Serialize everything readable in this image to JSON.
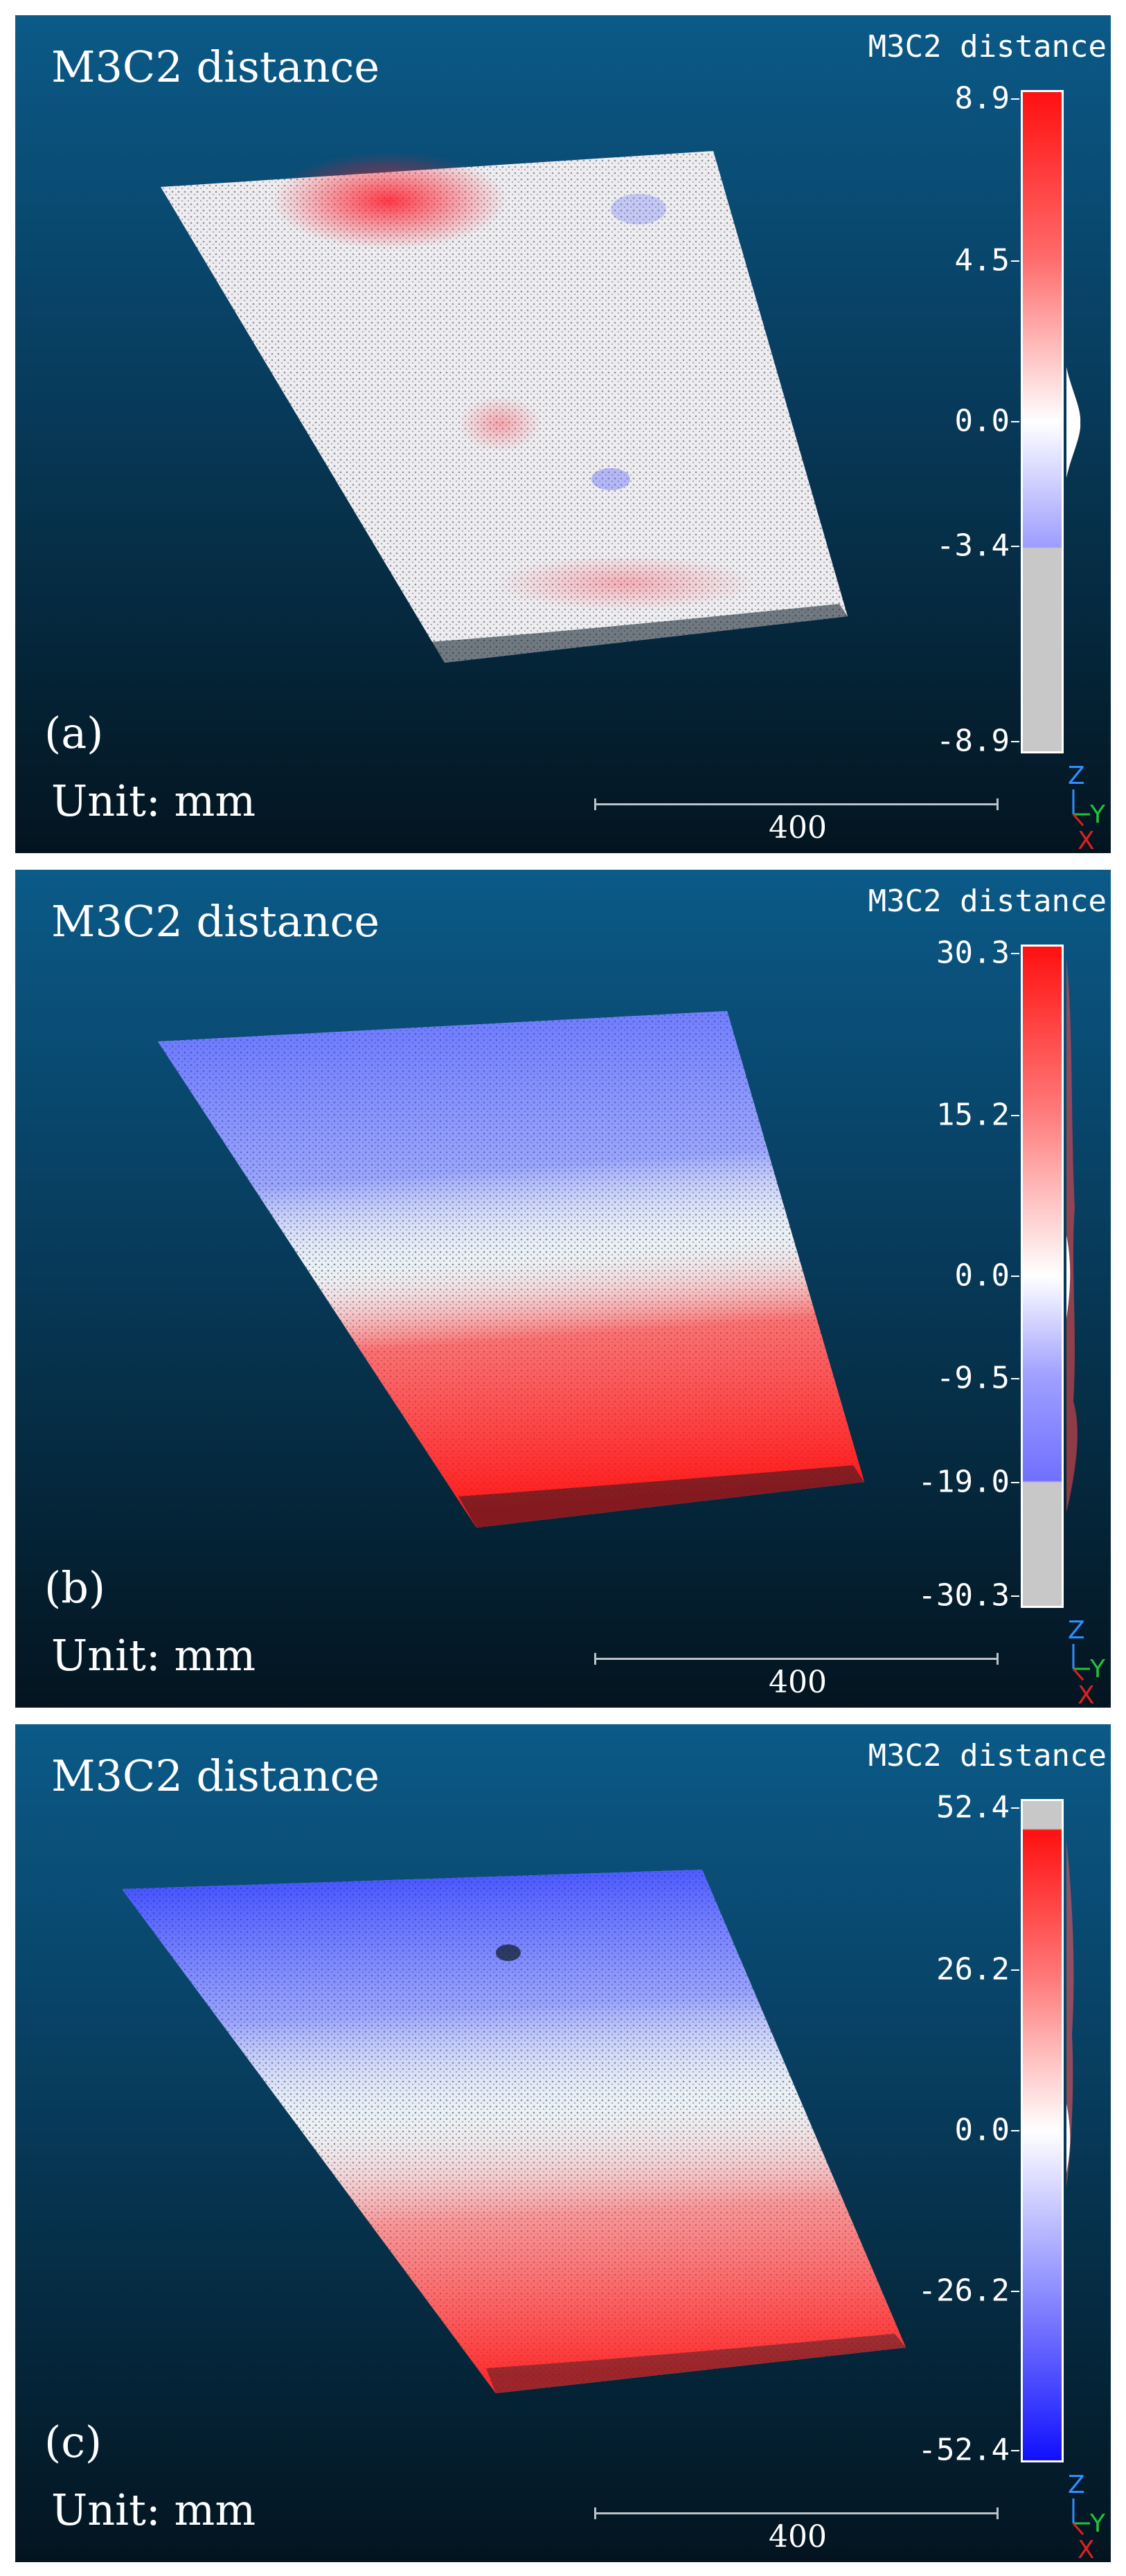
{
  "panels": [
    {
      "title": "M3C2 distance",
      "label": "(a)",
      "unit": "Unit: mm",
      "scalebar": "400",
      "colorbar_title": "M3C2 distance",
      "ticks": [
        "8.9",
        "4.5",
        "0.0",
        "-3.4",
        "-8.9"
      ],
      "tick_values": [
        8.9,
        4.5,
        0.0,
        -3.4,
        -8.9
      ],
      "range": [
        -8.9,
        8.9
      ],
      "saturation_low": -3.4,
      "axis": {
        "z": "Z",
        "y": "Y",
        "x": "X"
      }
    },
    {
      "title": "M3C2 distance",
      "label": "(b)",
      "unit": "Unit: mm",
      "scalebar": "400",
      "colorbar_title": "M3C2 distance",
      "ticks": [
        "30.3",
        "15.2",
        "0.0",
        "-9.5",
        "-19.0",
        "-30.3"
      ],
      "tick_values": [
        30.3,
        15.2,
        0.0,
        -9.5,
        -19.0,
        -30.3
      ],
      "range": [
        -30.3,
        30.3
      ],
      "saturation_low": -19.0,
      "axis": {
        "z": "Z",
        "y": "Y",
        "x": "X"
      }
    },
    {
      "title": "M3C2 distance",
      "label": "(c)",
      "unit": "Unit: mm",
      "scalebar": "400",
      "colorbar_title": "M3C2 distance",
      "ticks": [
        "52.4",
        "26.2",
        "0.0",
        "-26.2",
        "-52.4"
      ],
      "tick_values": [
        52.4,
        26.2,
        0.0,
        -26.2,
        -52.4
      ],
      "range": [
        -52.4,
        52.4
      ],
      "saturation_high": 48.0,
      "axis": {
        "z": "Z",
        "y": "Y",
        "x": "X"
      }
    }
  ],
  "colors": {
    "background_top": "#0b5a88",
    "background_bottom": "#03141f",
    "positive": "#ff1a1a",
    "neutral": "#ffffff",
    "negative": "#1a1aff",
    "saturated": "#c8c8c8",
    "axis_z": "#2e8fff",
    "axis_y": "#22c23a",
    "axis_x": "#e02020"
  }
}
